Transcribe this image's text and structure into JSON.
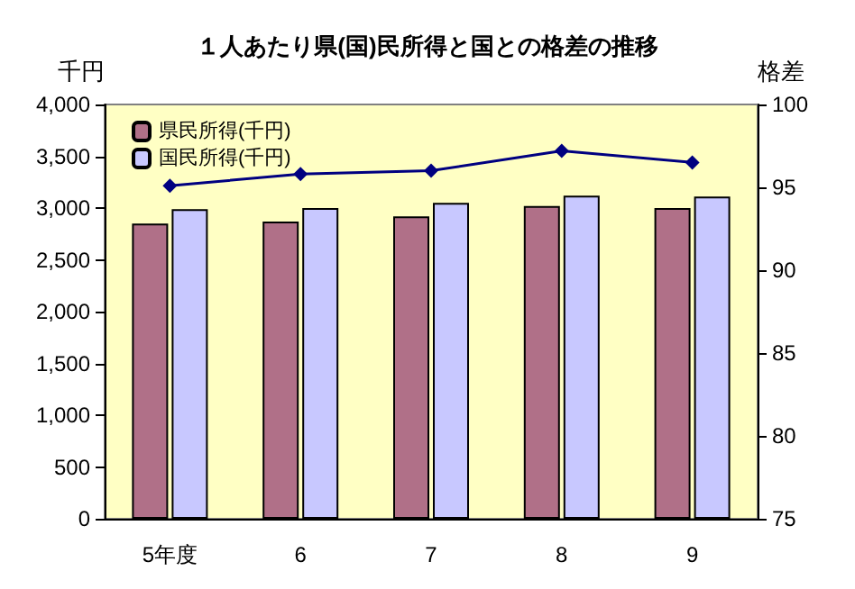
{
  "chart_data": {
    "type": "bar",
    "title": "１人あたり県(国)民所得と国との格差の推移",
    "ylabel": "千円",
    "y2label": "格差",
    "categories": [
      "5年度",
      "6",
      "7",
      "8",
      "9"
    ],
    "series": [
      {
        "name": "県民所得(千円)",
        "color": "#b07088",
        "values": [
          2850,
          2870,
          2920,
          3020,
          3000
        ]
      },
      {
        "name": "国民所得(千円)",
        "color": "#c8c8ff",
        "values": [
          2990,
          3000,
          3050,
          3120,
          3110
        ]
      },
      {
        "type": "line",
        "axis": "y2",
        "color": "#000080",
        "marker": "diamond",
        "values": [
          95.1,
          95.8,
          96.0,
          97.2,
          96.5
        ]
      }
    ],
    "ylim": [
      0,
      4000
    ],
    "yticks": [
      0,
      500,
      {
        "value": 1000,
        "label": "1,000"
      },
      {
        "value": 1500,
        "label": "1,500"
      },
      {
        "value": 2000,
        "label": "2,000"
      },
      {
        "value": 2500,
        "label": "2,500"
      },
      {
        "value": 3000,
        "label": "3,000"
      },
      {
        "value": 3500,
        "label": "3,500"
      },
      {
        "value": 4000,
        "label": "4,000"
      }
    ],
    "y2lim": [
      75,
      100
    ],
    "y2ticks": [
      75,
      80,
      85,
      90,
      95,
      100
    ],
    "grid": false,
    "legend": "top left"
  }
}
